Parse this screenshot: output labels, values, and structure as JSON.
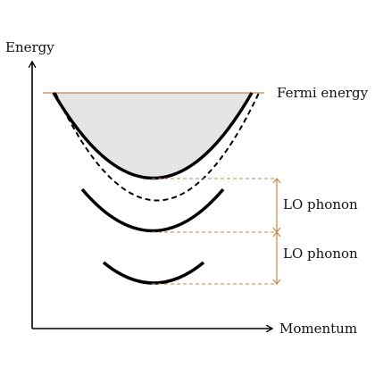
{
  "labels": {
    "energy": "Energy",
    "momentum": "Momentum",
    "fermi": "Fermi energy",
    "lo_upper": "LO phonon",
    "lo_lower": "LO phonon"
  },
  "colors": {
    "axis": "#000000",
    "curve": "#000000",
    "fill": "#e5e5e5",
    "accent": "#c8874a"
  }
}
